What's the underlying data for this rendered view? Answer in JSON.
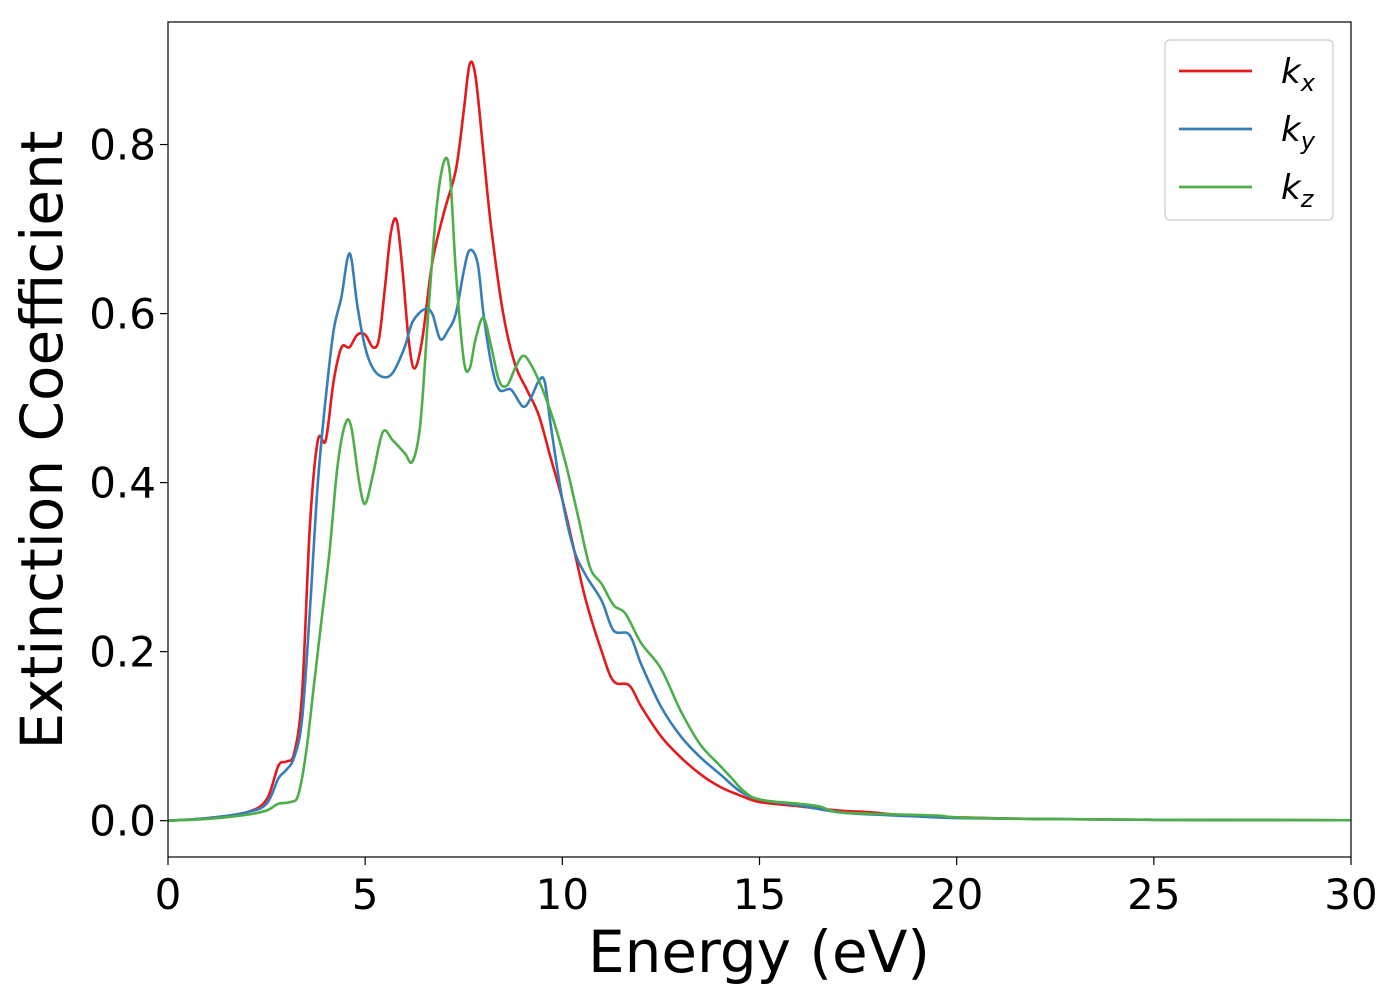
{
  "chart_data": {
    "type": "line",
    "title": "",
    "xlabel": "Energy (eV)",
    "ylabel": "Extinction Coefficient",
    "xlim": [
      0,
      30
    ],
    "ylim": [
      -0.043,
      0.945
    ],
    "xticks": [
      0,
      5,
      10,
      15,
      20,
      25,
      30
    ],
    "xtick_labels": [
      "0",
      "5",
      "10",
      "15",
      "20",
      "25",
      "30"
    ],
    "yticks": [
      0.0,
      0.2,
      0.4,
      0.6,
      0.8
    ],
    "ytick_labels": [
      "0.0",
      "0.2",
      "0.4",
      "0.6",
      "0.8"
    ],
    "grid": false,
    "legend_position": "top-right",
    "series": [
      {
        "name": "k",
        "subscript": "x",
        "color": "#e41a1c",
        "points": [
          [
            0,
            0
          ],
          [
            1,
            0.003
          ],
          [
            2,
            0.01
          ],
          [
            2.5,
            0.025
          ],
          [
            2.8,
            0.065
          ],
          [
            3.0,
            0.07
          ],
          [
            3.2,
            0.08
          ],
          [
            3.4,
            0.15
          ],
          [
            3.6,
            0.35
          ],
          [
            3.8,
            0.45
          ],
          [
            4.0,
            0.45
          ],
          [
            4.2,
            0.52
          ],
          [
            4.4,
            0.56
          ],
          [
            4.6,
            0.56
          ],
          [
            4.8,
            0.575
          ],
          [
            5.0,
            0.575
          ],
          [
            5.2,
            0.56
          ],
          [
            5.35,
            0.57
          ],
          [
            5.5,
            0.63
          ],
          [
            5.65,
            0.695
          ],
          [
            5.8,
            0.71
          ],
          [
            5.95,
            0.65
          ],
          [
            6.1,
            0.57
          ],
          [
            6.25,
            0.535
          ],
          [
            6.45,
            0.57
          ],
          [
            6.7,
            0.66
          ],
          [
            7.0,
            0.72
          ],
          [
            7.3,
            0.77
          ],
          [
            7.5,
            0.84
          ],
          [
            7.65,
            0.895
          ],
          [
            7.8,
            0.88
          ],
          [
            8.0,
            0.79
          ],
          [
            8.2,
            0.7
          ],
          [
            8.5,
            0.6
          ],
          [
            8.8,
            0.54
          ],
          [
            9.1,
            0.51
          ],
          [
            9.4,
            0.48
          ],
          [
            9.7,
            0.43
          ],
          [
            10.0,
            0.38
          ],
          [
            10.3,
            0.32
          ],
          [
            10.6,
            0.26
          ],
          [
            11.0,
            0.2
          ],
          [
            11.3,
            0.165
          ],
          [
            11.7,
            0.16
          ],
          [
            12.0,
            0.135
          ],
          [
            12.5,
            0.1
          ],
          [
            13.0,
            0.075
          ],
          [
            13.5,
            0.055
          ],
          [
            14.0,
            0.04
          ],
          [
            14.5,
            0.03
          ],
          [
            15.0,
            0.022
          ],
          [
            16.0,
            0.017
          ],
          [
            17.0,
            0.012
          ],
          [
            17.8,
            0.01
          ],
          [
            18.5,
            0.007
          ],
          [
            19.5,
            0.005
          ],
          [
            20.0,
            0.004
          ],
          [
            22.0,
            0.002
          ],
          [
            25.0,
            0.001
          ],
          [
            30.0,
            0.0005
          ]
        ]
      },
      {
        "name": "k",
        "subscript": "y",
        "color": "#377eb8",
        "points": [
          [
            0,
            0
          ],
          [
            1,
            0.003
          ],
          [
            2,
            0.01
          ],
          [
            2.5,
            0.02
          ],
          [
            2.8,
            0.05
          ],
          [
            3.0,
            0.06
          ],
          [
            3.2,
            0.075
          ],
          [
            3.4,
            0.12
          ],
          [
            3.6,
            0.25
          ],
          [
            3.8,
            0.4
          ],
          [
            4.0,
            0.5
          ],
          [
            4.2,
            0.58
          ],
          [
            4.4,
            0.62
          ],
          [
            4.55,
            0.665
          ],
          [
            4.65,
            0.665
          ],
          [
            4.8,
            0.61
          ],
          [
            5.0,
            0.56
          ],
          [
            5.2,
            0.535
          ],
          [
            5.45,
            0.525
          ],
          [
            5.7,
            0.53
          ],
          [
            6.0,
            0.56
          ],
          [
            6.2,
            0.59
          ],
          [
            6.5,
            0.605
          ],
          [
            6.7,
            0.6
          ],
          [
            6.9,
            0.57
          ],
          [
            7.1,
            0.58
          ],
          [
            7.3,
            0.6
          ],
          [
            7.5,
            0.65
          ],
          [
            7.65,
            0.675
          ],
          [
            7.85,
            0.66
          ],
          [
            8.0,
            0.6
          ],
          [
            8.2,
            0.54
          ],
          [
            8.4,
            0.51
          ],
          [
            8.7,
            0.51
          ],
          [
            9.0,
            0.49
          ],
          [
            9.2,
            0.5
          ],
          [
            9.4,
            0.52
          ],
          [
            9.55,
            0.52
          ],
          [
            9.7,
            0.47
          ],
          [
            10.0,
            0.38
          ],
          [
            10.3,
            0.32
          ],
          [
            10.6,
            0.29
          ],
          [
            11.0,
            0.26
          ],
          [
            11.3,
            0.225
          ],
          [
            11.7,
            0.22
          ],
          [
            12.0,
            0.185
          ],
          [
            12.5,
            0.135
          ],
          [
            13.0,
            0.1
          ],
          [
            13.5,
            0.075
          ],
          [
            14.0,
            0.055
          ],
          [
            14.5,
            0.035
          ],
          [
            15.0,
            0.025
          ],
          [
            16.0,
            0.018
          ],
          [
            17.0,
            0.01
          ],
          [
            18.0,
            0.007
          ],
          [
            19.0,
            0.005
          ],
          [
            20.0,
            0.003
          ],
          [
            22.0,
            0.002
          ],
          [
            25.0,
            0.001
          ],
          [
            30.0,
            0.0005
          ]
        ]
      },
      {
        "name": "k",
        "subscript": "z",
        "color": "#4daf4a",
        "points": [
          [
            0,
            0
          ],
          [
            1,
            0.002
          ],
          [
            2,
            0.007
          ],
          [
            2.5,
            0.012
          ],
          [
            2.8,
            0.02
          ],
          [
            3.1,
            0.022
          ],
          [
            3.3,
            0.03
          ],
          [
            3.5,
            0.08
          ],
          [
            3.7,
            0.16
          ],
          [
            3.9,
            0.24
          ],
          [
            4.1,
            0.32
          ],
          [
            4.3,
            0.42
          ],
          [
            4.5,
            0.47
          ],
          [
            4.65,
            0.465
          ],
          [
            4.85,
            0.4
          ],
          [
            5.0,
            0.375
          ],
          [
            5.2,
            0.41
          ],
          [
            5.45,
            0.46
          ],
          [
            5.7,
            0.45
          ],
          [
            6.0,
            0.435
          ],
          [
            6.2,
            0.425
          ],
          [
            6.4,
            0.47
          ],
          [
            6.6,
            0.6
          ],
          [
            6.8,
            0.72
          ],
          [
            7.0,
            0.78
          ],
          [
            7.15,
            0.765
          ],
          [
            7.3,
            0.65
          ],
          [
            7.5,
            0.545
          ],
          [
            7.65,
            0.535
          ],
          [
            7.8,
            0.57
          ],
          [
            8.0,
            0.595
          ],
          [
            8.2,
            0.56
          ],
          [
            8.4,
            0.52
          ],
          [
            8.6,
            0.515
          ],
          [
            8.8,
            0.535
          ],
          [
            9.0,
            0.55
          ],
          [
            9.2,
            0.54
          ],
          [
            9.5,
            0.51
          ],
          [
            9.8,
            0.47
          ],
          [
            10.1,
            0.42
          ],
          [
            10.4,
            0.36
          ],
          [
            10.7,
            0.3
          ],
          [
            11.0,
            0.28
          ],
          [
            11.3,
            0.255
          ],
          [
            11.6,
            0.245
          ],
          [
            12.0,
            0.21
          ],
          [
            12.5,
            0.18
          ],
          [
            13.0,
            0.13
          ],
          [
            13.5,
            0.09
          ],
          [
            14.0,
            0.065
          ],
          [
            14.3,
            0.05
          ],
          [
            14.6,
            0.035
          ],
          [
            15.0,
            0.025
          ],
          [
            16.0,
            0.02
          ],
          [
            16.5,
            0.017
          ],
          [
            17.0,
            0.01
          ],
          [
            18.0,
            0.008
          ],
          [
            19.5,
            0.006
          ],
          [
            20.0,
            0.004
          ],
          [
            22.0,
            0.002
          ],
          [
            25.0,
            0.001
          ],
          [
            30.0,
            0.0005
          ]
        ]
      }
    ]
  }
}
